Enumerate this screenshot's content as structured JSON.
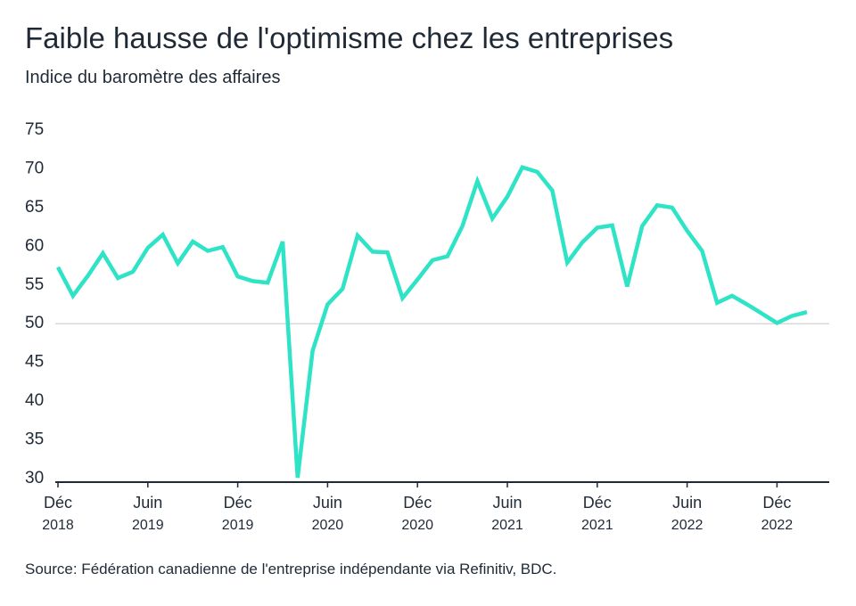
{
  "chart_data": {
    "type": "line",
    "title": "Faible hausse de l'optimisme chez les entreprises",
    "subtitle": "Indice du baromètre des affaires",
    "source": "Source: Fédération canadienne de l'entreprise indépendante via Refinitiv, BDC.",
    "categories": [
      "Déc 2018",
      null,
      null,
      null,
      null,
      null,
      "Juin 2019",
      null,
      null,
      null,
      null,
      null,
      "Déc 2019",
      null,
      null,
      null,
      null,
      null,
      "Juin 2020",
      null,
      null,
      null,
      null,
      null,
      "Déc 2020",
      null,
      null,
      null,
      null,
      null,
      "Juin 2021",
      null,
      null,
      null,
      null,
      null,
      "Déc 2021",
      null,
      null,
      null,
      null,
      null,
      "Juin 2022",
      null,
      null,
      null,
      null,
      null,
      "Déc 2022",
      null,
      null
    ],
    "series": [
      {
        "name": "Indice du baromètre des affaires",
        "color": "#2ee3c6",
        "values": [
          57.3,
          53.6,
          56.2,
          59.1,
          55.9,
          56.7,
          59.8,
          61.5,
          57.8,
          60.6,
          59.4,
          59.9,
          56.1,
          55.5,
          55.3,
          60.6,
          30.1,
          46.5,
          52.5,
          54.5,
          61.4,
          59.3,
          59.2,
          53.3,
          55.7,
          58.2,
          58.7,
          62.6,
          68.4,
          63.6,
          66.4,
          70.2,
          69.6,
          67.2,
          57.9,
          60.5,
          62.4,
          62.7,
          54.8,
          62.6,
          65.3,
          65.0,
          62.0,
          59.4,
          52.7,
          53.6,
          52.5,
          51.3,
          50.1,
          51.0,
          51.5
        ]
      }
    ],
    "ylim": [
      30,
      75
    ],
    "yticks": [
      30,
      35,
      40,
      45,
      50,
      55,
      60,
      65,
      70,
      75
    ],
    "reference_line": 50
  }
}
